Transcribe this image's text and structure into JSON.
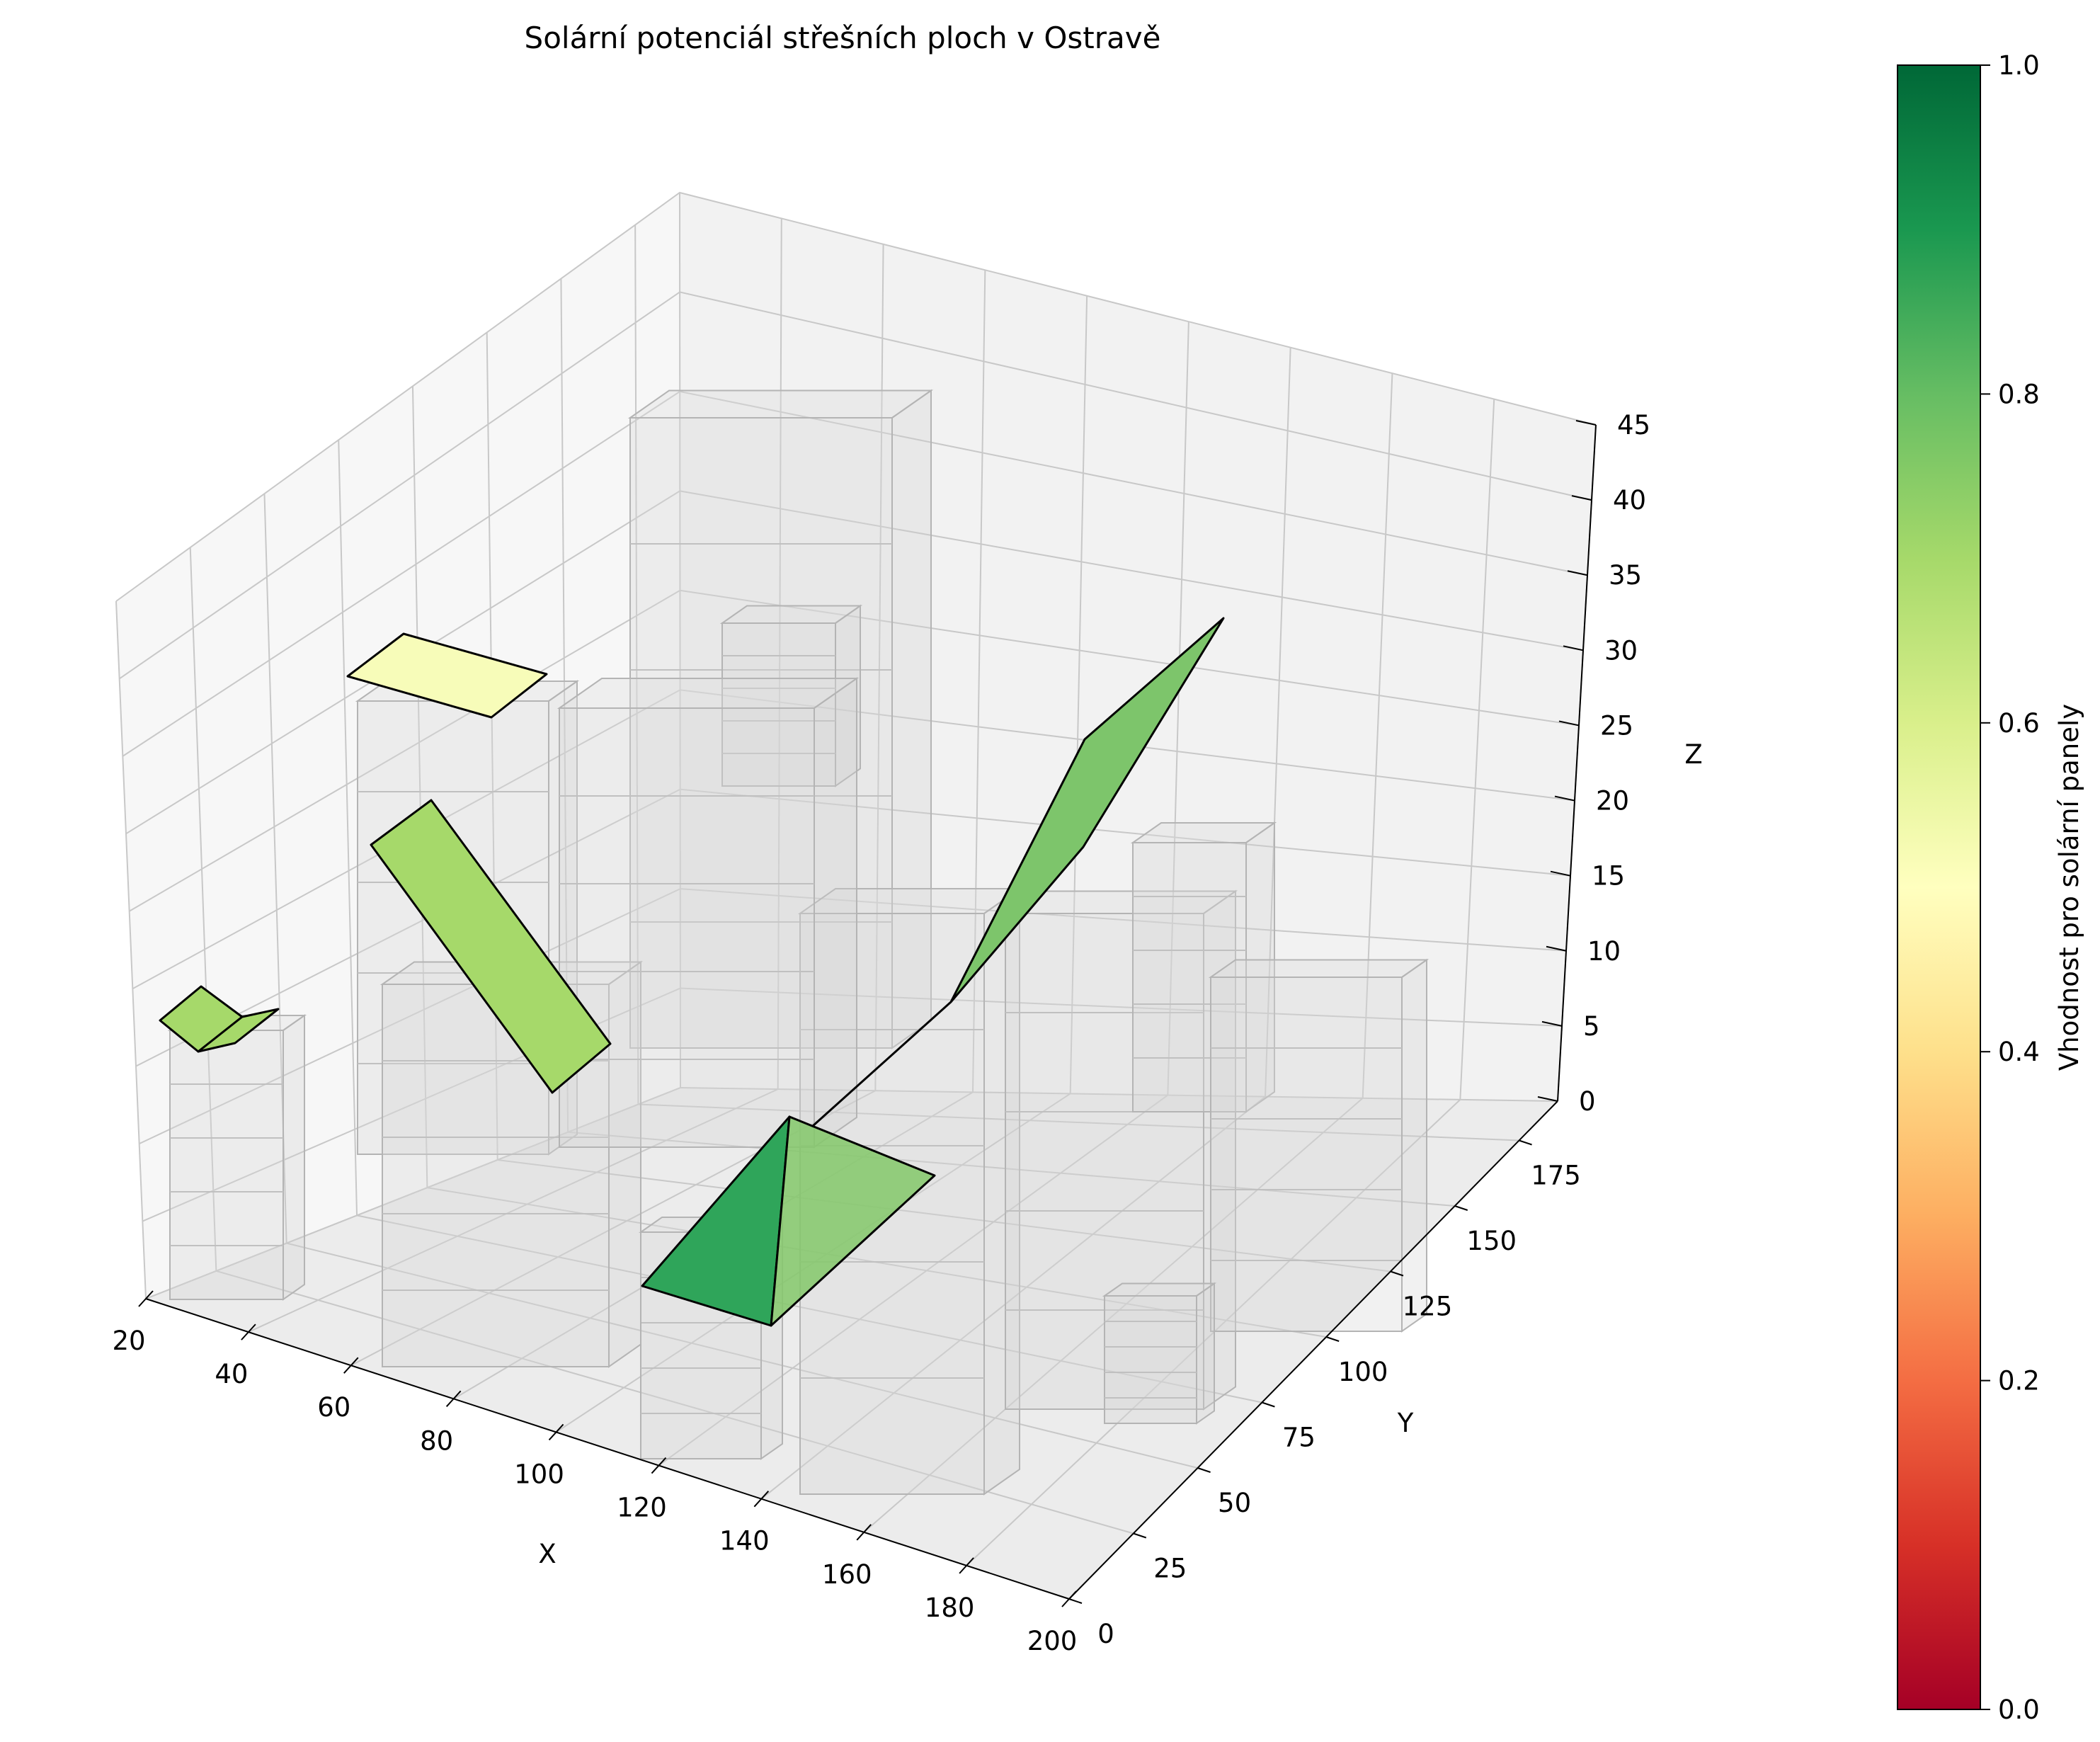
{
  "chart_data": {
    "type": "3d-surface",
    "title": "Solární potenciál střešních ploch v Ostravě",
    "xlabel": "X",
    "ylabel": "Y",
    "zlabel": "Z",
    "x_ticks": [
      "20",
      "40",
      "60",
      "80",
      "100",
      "120",
      "140",
      "160",
      "180",
      "200"
    ],
    "y_ticks": [
      "0",
      "25",
      "50",
      "75",
      "100",
      "125",
      "150",
      "175"
    ],
    "z_ticks": [
      "0",
      "5",
      "10",
      "15",
      "20",
      "25",
      "30",
      "35",
      "40",
      "45"
    ],
    "xlim": [
      20,
      200
    ],
    "ylim": [
      0,
      190
    ],
    "zlim": [
      0,
      45
    ],
    "colormap": "RdYlGn",
    "colorbar": {
      "label": "Vhodnost pro solární panely",
      "range": [
        0,
        1
      ],
      "ticks": [
        "0.0",
        "0.2",
        "0.4",
        "0.6",
        "0.8",
        "1.0"
      ]
    },
    "roofs": [
      {
        "name": "flat-roof-yellow",
        "suitability": 0.5
      },
      {
        "name": "tilted-roof-left",
        "suitability": 0.7
      },
      {
        "name": "small-gable-roof-left",
        "suitability": 0.7
      },
      {
        "name": "pyramid-roof-dark",
        "suitability": 0.85
      },
      {
        "name": "pyramid-roof-light",
        "suitability": 0.72
      },
      {
        "name": "steep-roof-right",
        "suitability": 0.75
      }
    ]
  }
}
